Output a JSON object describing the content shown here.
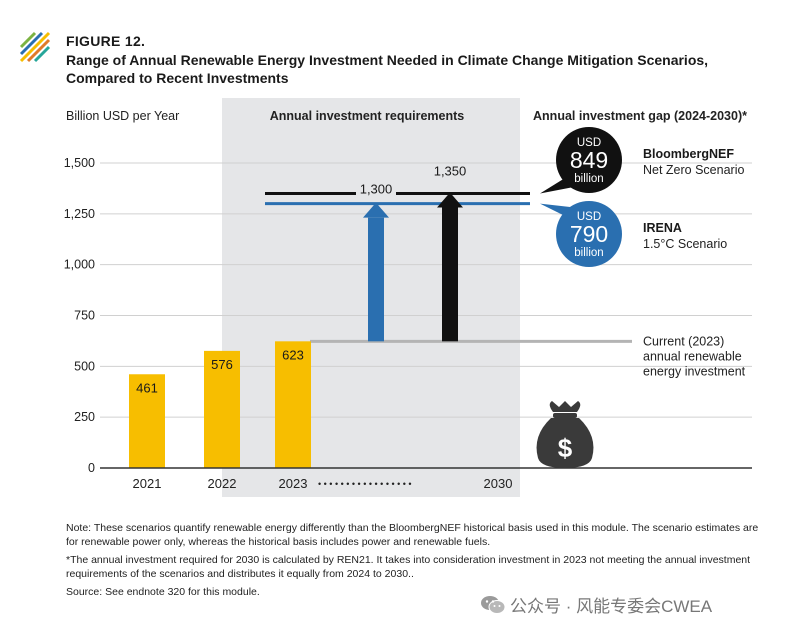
{
  "header": {
    "figure_number": "FIGURE 12.",
    "title_line1": "Range of Annual Renewable Energy Investment Needed in Climate Change Mitigation Scenarios,",
    "title_line2": "Compared to Recent Investments"
  },
  "chart_data": {
    "type": "bar",
    "ylabel": "Billion USD per Year",
    "ylim": [
      0,
      1500
    ],
    "yticks": [
      "0",
      "250",
      "500",
      "750",
      "1,000",
      "1,250",
      "1,500"
    ],
    "grid": true,
    "categories": [
      "2021",
      "2022",
      "2023"
    ],
    "values": [
      461,
      576,
      623
    ],
    "value_labels": [
      "461",
      "576",
      "623"
    ],
    "dots_label": "• • • • • • • • • • • • • • • • •",
    "target_year": "2030",
    "requirements_heading": "Annual investment requirements",
    "gap_heading": "Annual investment gap (2024-2030)*",
    "requirements": [
      {
        "value": 1300,
        "label": "1,300",
        "color": "#2a6fb0"
      },
      {
        "value": 1350,
        "label": "1,350",
        "color": "#111111"
      }
    ],
    "current_reference": {
      "value": 623,
      "label_lines": [
        "Current (2023)",
        "annual renewable",
        "energy investment"
      ]
    },
    "gaps": [
      {
        "currency": "USD",
        "amount": "849",
        "unit": "billion",
        "name": "BloombergNEF",
        "scenario": "Net Zero Scenario",
        "color": "#111111"
      },
      {
        "currency": "USD",
        "amount": "790",
        "unit": "billion",
        "name": "IRENA",
        "scenario": "1.5°C Scenario",
        "color": "#2a6fb0"
      }
    ],
    "icon": "money-bag-icon",
    "colors": {
      "bar": "#f7be00",
      "shade": "#e5e6e8",
      "reference": "#b4b4b4",
      "grid": "#d0d0d0"
    }
  },
  "notes": {
    "note": "Note: These scenarios quantify renewable energy differently than the BloombergNEF historical basis used in this module. The scenario estimates are for renewable power only, whereas the historical basis includes power and renewable fuels.",
    "footnote": "*The annual investment required for 2030 is calculated by REN21. It takes into consideration investment in 2023 not meeting the annual investment requirements of the scenarios and distributes it equally from 2024 to 2030..",
    "source": "Source: See endnote 320 for this module."
  },
  "watermark": {
    "icon": "wechat-icon",
    "text": "公众号 · 风能专委会CWEA"
  }
}
